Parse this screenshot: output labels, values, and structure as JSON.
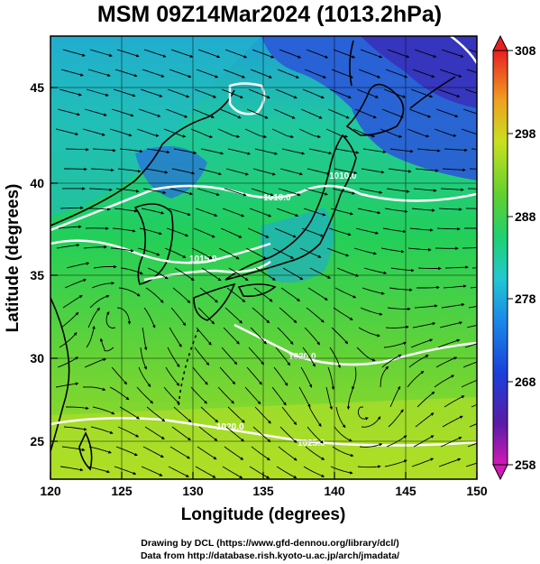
{
  "figure": {
    "title": "MSM 09Z14Mar2024 (1013.2hPa)",
    "xlabel": "Longitude (degrees)",
    "ylabel": "Latitude  (degrees)",
    "credit_line1": "Drawing by DCL (https://www.gfd-dennou.org/library/dcl/)",
    "credit_line2": "Data from http://database.rish.kyoto-u.ac.jp/arch/jmadata/"
  },
  "axes": {
    "lon_range": [
      120,
      150
    ],
    "lat_range": [
      22.4,
      47.6
    ],
    "x_ticks": [
      "120",
      "125",
      "130",
      "135",
      "140",
      "145",
      "150"
    ],
    "y_ticks": [
      "25",
      "30",
      "35",
      "40",
      "45"
    ]
  },
  "colorbar": {
    "range": [
      258,
      308
    ],
    "ticks": [
      "258",
      "268",
      "278",
      "288",
      "298",
      "308"
    ],
    "unit_hint": "K",
    "colors": [
      "#d21ab4",
      "#3a1a9e",
      "#1a55e0",
      "#22c8d0",
      "#20d070",
      "#3ec837",
      "#b4e020",
      "#f0e020",
      "#f09020",
      "#e82020"
    ]
  },
  "contours": {
    "labels": [
      "1010.0",
      "1010.0",
      "1015.0",
      "1020.0",
      "1020.0",
      "1025.0"
    ]
  },
  "map_features": {
    "field": "temperature with wind streamlines",
    "isobar_color": "#ffffff"
  }
}
